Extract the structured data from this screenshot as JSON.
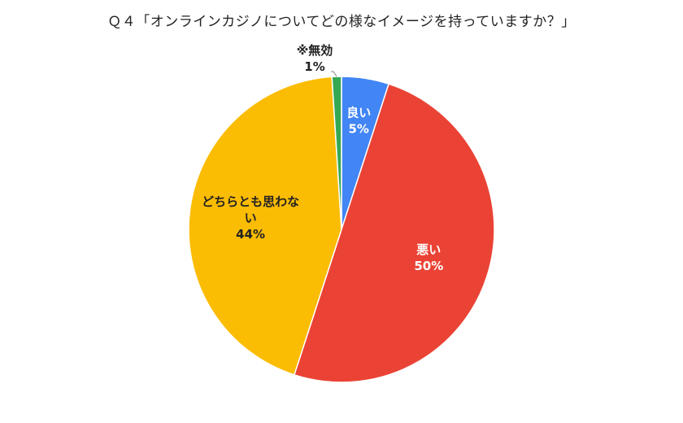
{
  "chart_data": {
    "type": "pie",
    "title": "Ｑ４「オンラインカジノについてどの様なイメージを持っていますか？」",
    "start_angle_deg": 0,
    "direction": "clockwise",
    "slices": [
      {
        "category": "良い",
        "value": 5,
        "label_lines": [
          "良い",
          "5%"
        ],
        "color": "#4285f4",
        "label_color": "#ffffff",
        "label_position": "inside"
      },
      {
        "category": "悪い",
        "value": 50,
        "label_lines": [
          "悪い",
          "50%"
        ],
        "color": "#ea4335",
        "label_color": "#ffffff",
        "label_position": "inside"
      },
      {
        "category": "どちらとも思わない",
        "value": 44,
        "label_lines": [
          "どちらとも思わな",
          "い",
          "44%"
        ],
        "color": "#fbbc04",
        "label_color": "#222222",
        "label_position": "inside"
      },
      {
        "category": "※無効",
        "value": 1,
        "label_lines": [
          "※無効",
          "1%"
        ],
        "color": "#34a853",
        "label_color": "#222222",
        "label_position": "outside"
      }
    ]
  }
}
